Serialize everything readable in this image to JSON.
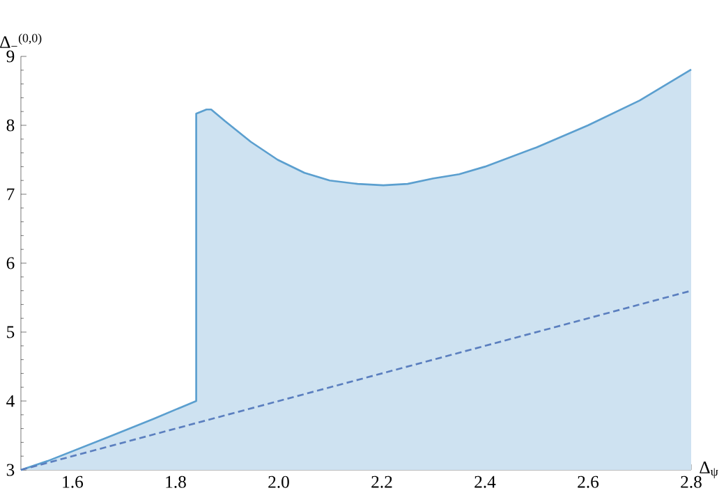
{
  "chart_data": {
    "type": "area",
    "xlabel": "Δ$_{ψ}$",
    "ylabel": "Δ$_{−}$$^{(0,0)}$",
    "xlim": [
      1.5,
      2.8
    ],
    "ylim": [
      3,
      9
    ],
    "xticks": [
      1.6,
      1.8,
      {
        "value": 2,
        "label": "2.0"
      },
      2.2,
      2.4,
      2.6,
      2.8
    ],
    "yticks": [
      3,
      4,
      5,
      6,
      7,
      8,
      9
    ],
    "series": [
      {
        "color": "#5b9fcf",
        "x": [
          1.5,
          1.552,
          1.667,
          1.757,
          1.811,
          1.84,
          1.84,
          1.86,
          1.869,
          1.896,
          1.946,
          1.998,
          2.05,
          2.099,
          2.153,
          2.203,
          2.25,
          2.3,
          2.35,
          2.4,
          2.5,
          2.6,
          2.7,
          2.8
        ],
        "values": [
          3,
          3.13,
          3.47,
          3.74,
          3.91,
          4.0,
          8.17,
          8.23,
          8.23,
          8.06,
          7.76,
          7.5,
          7.31,
          7.2,
          7.15,
          7.13,
          7.15,
          7.23,
          7.29,
          7.4,
          7.68,
          8.0,
          8.36,
          8.81
        ]
      },
      {
        "type": "line",
        "color": "#5b7fbf",
        "line_style": "dashed",
        "x": [
          1.5,
          2.8
        ],
        "values": [
          3,
          5.6
        ]
      }
    ]
  }
}
